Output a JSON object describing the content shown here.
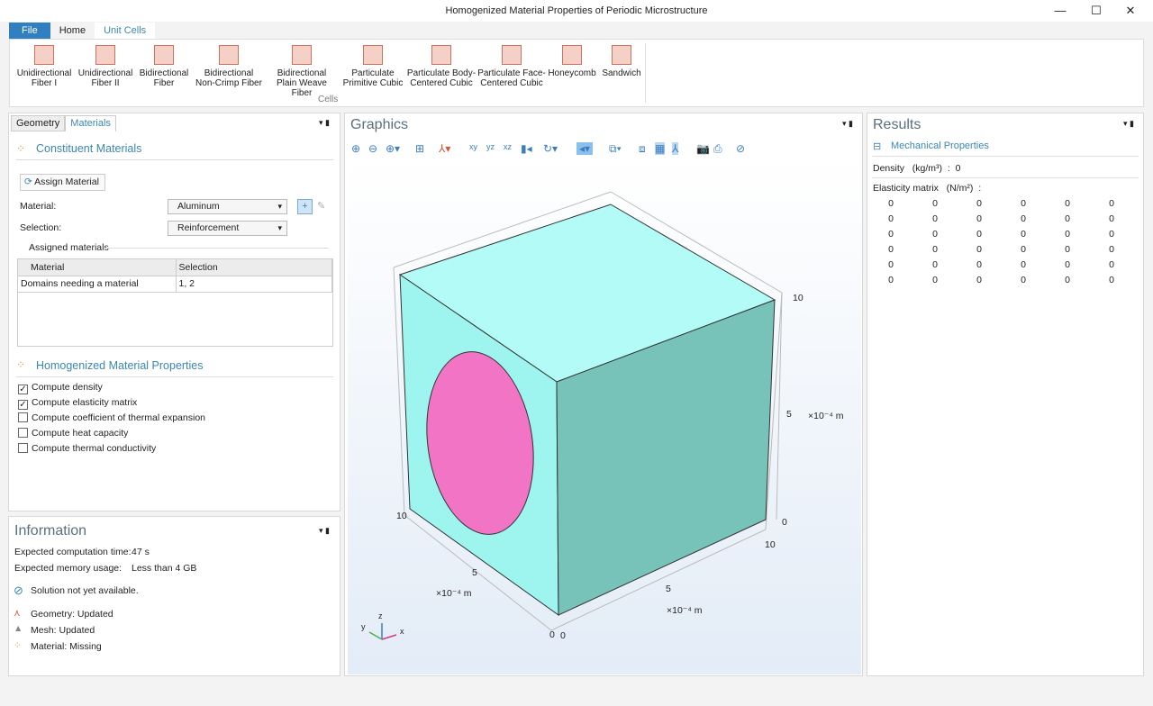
{
  "window": {
    "title": "Homogenized Material Properties of Periodic Microstructure",
    "minimize": "—",
    "maximize": "☐",
    "close": "✕"
  },
  "menu_tabs": [
    {
      "label": "File"
    },
    {
      "label": "Home"
    },
    {
      "label": "Unit Cells"
    }
  ],
  "ribbon": {
    "group_label": "Cells",
    "buttons": [
      {
        "l1": "Unidirectional",
        "l2": "Fiber I"
      },
      {
        "l1": "Unidirectional",
        "l2": "Fiber II"
      },
      {
        "l1": "Bidirectional",
        "l2": "Fiber"
      },
      {
        "l1": "Bidirectional",
        "l2": "Non-Crimp Fiber"
      },
      {
        "l1": "Bidirectional",
        "l2": "Plain Weave Fiber"
      },
      {
        "l1": "Particulate",
        "l2": "Primitive Cubic"
      },
      {
        "l1": "Particulate Body-",
        "l2": "Centered Cubic"
      },
      {
        "l1": "Particulate Face-",
        "l2": "Centered Cubic"
      },
      {
        "l1": "Honeycomb",
        "l2": ""
      },
      {
        "l1": "Sandwich",
        "l2": ""
      }
    ]
  },
  "left": {
    "tabs": [
      {
        "label": "Geometry"
      },
      {
        "label": "Materials"
      }
    ],
    "constituent_title": "Constituent Materials",
    "assign_button": "Assign Material",
    "material_label": "Material:",
    "material_value": "Aluminum",
    "selection_label": "Selection:",
    "selection_value": "Reinforcement",
    "assigned_label": "Assigned materials",
    "table": {
      "headers": [
        "Material",
        "Selection"
      ],
      "rows": [
        [
          "Domains needing a material",
          "1, 2"
        ]
      ]
    },
    "homog_title": "Homogenized Material Properties",
    "checks": [
      {
        "label": "Compute density",
        "checked": true
      },
      {
        "label": "Compute elasticity matrix",
        "checked": true
      },
      {
        "label": "Compute coefficient of thermal expansion",
        "checked": false
      },
      {
        "label": "Compute heat capacity",
        "checked": false
      },
      {
        "label": "Compute thermal conductivity",
        "checked": false
      }
    ]
  },
  "info": {
    "title": "Information",
    "time_label": "Expected computation time:",
    "time_value": "47 s",
    "mem_label": "Expected memory usage:",
    "mem_value": "Less than 4 GB",
    "solution": "Solution not yet available.",
    "geometry": "Geometry: Updated",
    "mesh": "Mesh: Updated",
    "material": "Material: Missing"
  },
  "graphics": {
    "title": "Graphics",
    "ticks": {
      "z10": "10",
      "z5": "5",
      "z0": "0",
      "y10": "10",
      "y5": "5",
      "y0": "0",
      "x10": "10",
      "x5": "5",
      "x0": "0",
      "unit": "×10⁻⁴ m"
    },
    "axis": {
      "x": "x",
      "y": "y",
      "z": "z"
    },
    "colors": {
      "matrix_top": "#b3fbf6",
      "matrix_front": "#9ef5ef",
      "matrix_right": "#78c3b9",
      "fiber": "#f274c4"
    }
  },
  "results": {
    "title": "Results",
    "section": "Mechanical Properties",
    "density": "Density   (kg/m³)  :  0",
    "elasticity": "Elasticity matrix   (N/m²)  :",
    "matrix": [
      [
        "0",
        "0",
        "0",
        "0",
        "0",
        "0"
      ],
      [
        "0",
        "0",
        "0",
        "0",
        "0",
        "0"
      ],
      [
        "0",
        "0",
        "0",
        "0",
        "0",
        "0"
      ],
      [
        "0",
        "0",
        "0",
        "0",
        "0",
        "0"
      ],
      [
        "0",
        "0",
        "0",
        "0",
        "0",
        "0"
      ],
      [
        "0",
        "0",
        "0",
        "0",
        "0",
        "0"
      ]
    ]
  }
}
